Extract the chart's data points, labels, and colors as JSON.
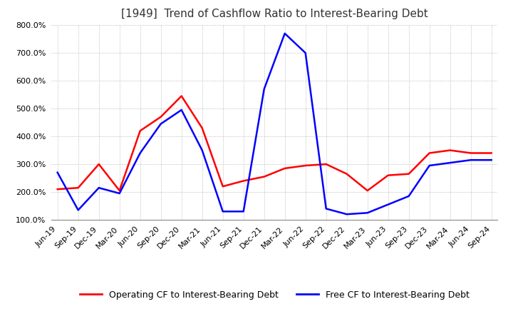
{
  "title": "[1949]  Trend of Cashflow Ratio to Interest-Bearing Debt",
  "ylim": [
    100,
    800
  ],
  "yticks": [
    100,
    200,
    300,
    400,
    500,
    600,
    700,
    800
  ],
  "x_labels": [
    "Jun-19",
    "Sep-19",
    "Dec-19",
    "Mar-20",
    "Jun-20",
    "Sep-20",
    "Dec-20",
    "Mar-21",
    "Jun-21",
    "Sep-21",
    "Dec-21",
    "Mar-22",
    "Jun-22",
    "Sep-22",
    "Dec-22",
    "Mar-23",
    "Jun-23",
    "Sep-23",
    "Dec-23",
    "Mar-24",
    "Jun-24",
    "Sep-24"
  ],
  "operating_cf": [
    210,
    215,
    300,
    205,
    420,
    470,
    545,
    430,
    220,
    240,
    255,
    285,
    295,
    300,
    265,
    205,
    260,
    265,
    340,
    350,
    340,
    340
  ],
  "free_cf": [
    270,
    135,
    215,
    195,
    340,
    445,
    495,
    350,
    130,
    130,
    570,
    770,
    700,
    140,
    120,
    125,
    155,
    185,
    295,
    305,
    315,
    315
  ],
  "line_color_operating": "#ff0000",
  "line_color_free": "#0000ff",
  "line_width": 1.8,
  "legend_labels": [
    "Operating CF to Interest-Bearing Debt",
    "Free CF to Interest-Bearing Debt"
  ],
  "background_color": "#ffffff",
  "grid_color": "#aaaaaa",
  "title_fontsize": 11,
  "tick_fontsize": 8,
  "legend_fontsize": 9
}
